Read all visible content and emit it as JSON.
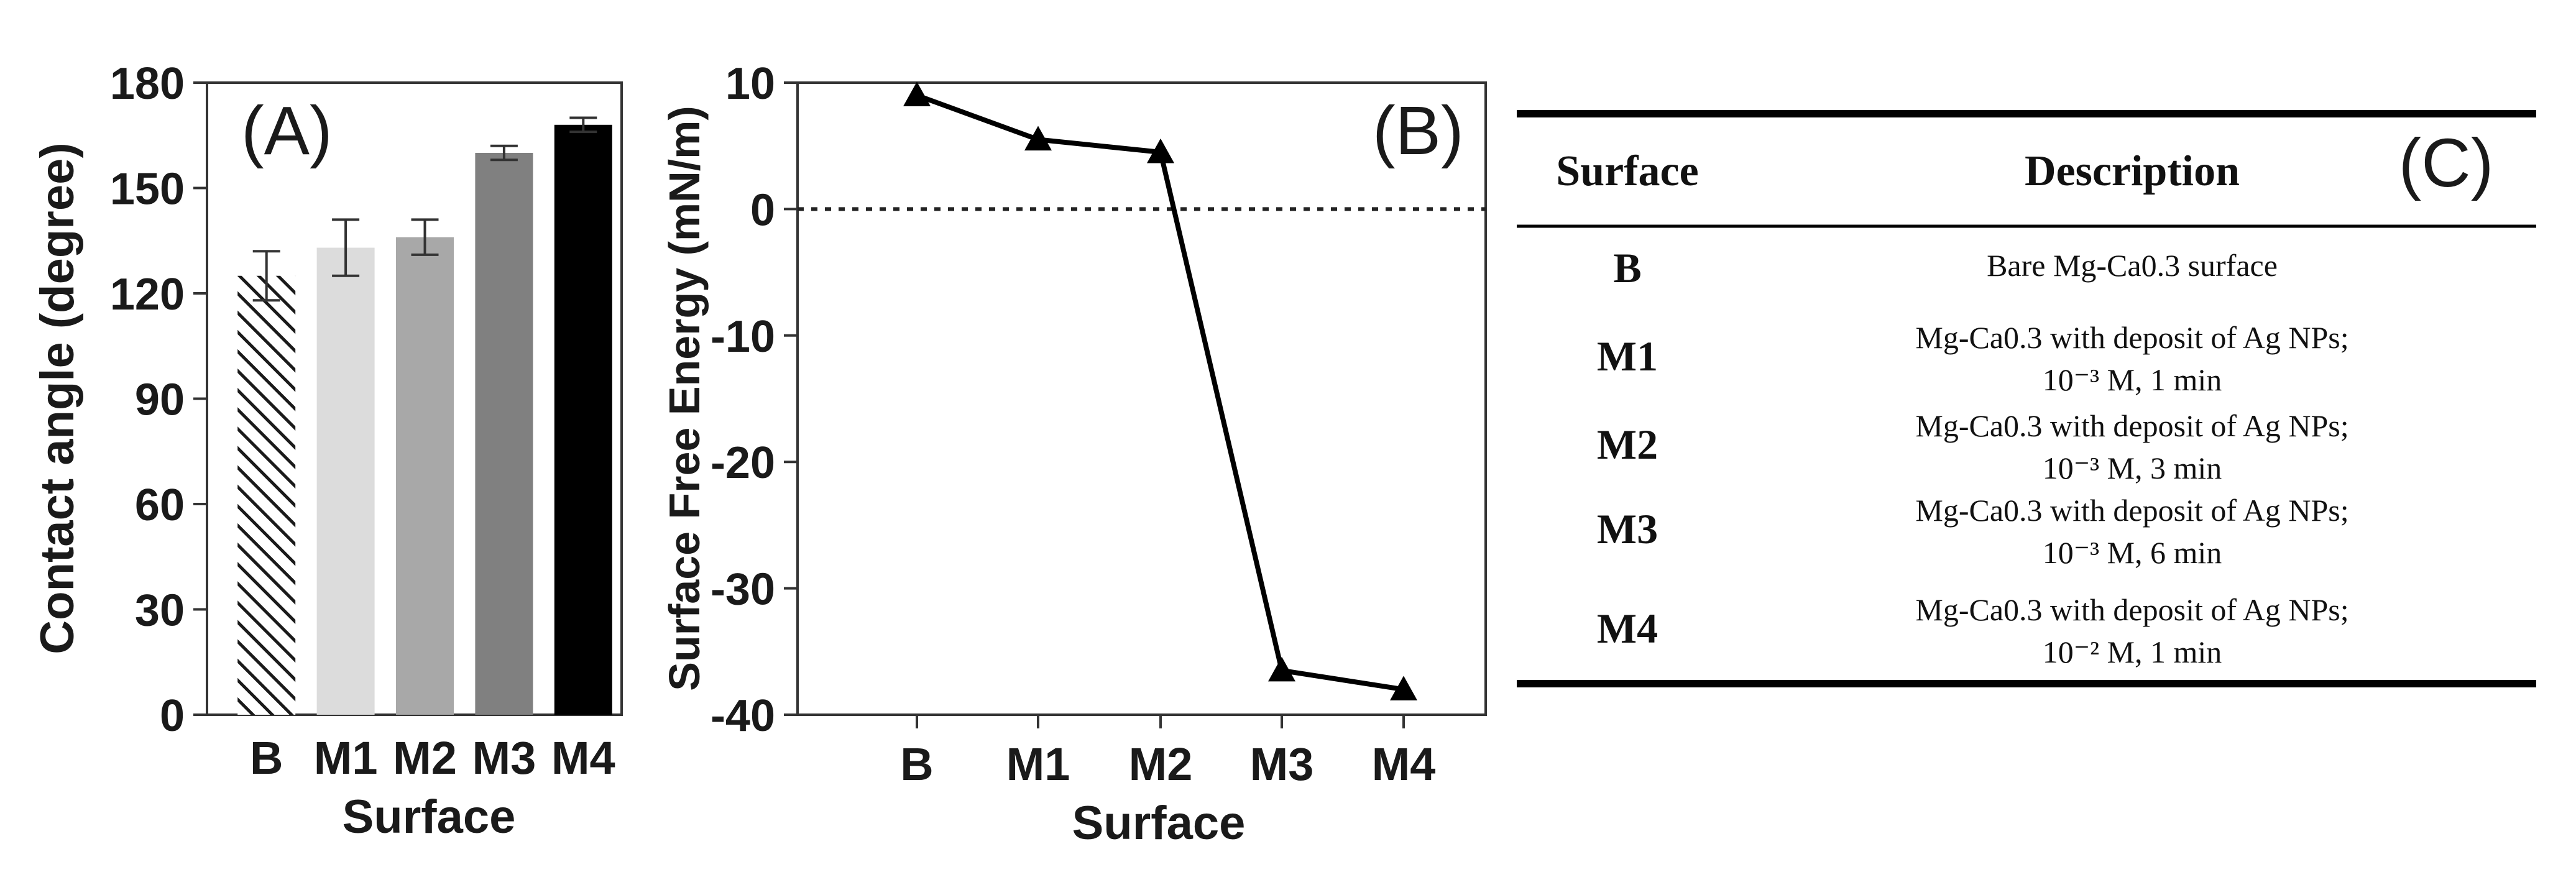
{
  "panels": {
    "a_label": "(A)",
    "b_label": "(B)",
    "c_label": "(C)"
  },
  "chart_data": [
    {
      "type": "bar",
      "title": "(A)",
      "xlabel": "Surface",
      "ylabel": "Contact angle (degree)",
      "categories": [
        "B",
        "M1",
        "M2",
        "M3",
        "M4"
      ],
      "values": [
        125,
        133,
        136,
        160,
        168
      ],
      "errors": [
        7,
        8,
        5,
        2,
        2
      ],
      "colors": [
        "hatched",
        "#dcdcdc",
        "#a8a8a8",
        "#808080",
        "#000000"
      ],
      "ylim": [
        0,
        180
      ],
      "yticks": [
        0,
        30,
        60,
        90,
        120,
        150,
        180
      ]
    },
    {
      "type": "line",
      "title": "(B)",
      "xlabel": "Surface",
      "ylabel": "Surface Free Energy (mN/m)",
      "categories": [
        "B",
        "M1",
        "M2",
        "M3",
        "M4"
      ],
      "values": [
        9,
        5.5,
        4.5,
        -36.5,
        -38
      ],
      "marker": "triangle",
      "reference_line": 0,
      "ylim": [
        -40,
        10
      ],
      "yticks": [
        -40,
        -30,
        -20,
        -10,
        0,
        10
      ]
    },
    {
      "type": "table",
      "title": "(C)",
      "columns": [
        "Surface",
        "Description"
      ],
      "rows": [
        {
          "surface": "B",
          "line1": "Bare Mg-Ca0.3 surface",
          "line2": ""
        },
        {
          "surface": "M1",
          "line1": "Mg-Ca0.3 with deposit of Ag NPs;",
          "line2": "10⁻³ M, 1 min"
        },
        {
          "surface": "M2",
          "line1": "Mg-Ca0.3 with deposit of Ag NPs;",
          "line2": "10⁻³ M, 3 min"
        },
        {
          "surface": "M3",
          "line1": "Mg-Ca0.3 with deposit of Ag NPs;",
          "line2": "10⁻³ M, 6 min"
        },
        {
          "surface": "M4",
          "line1": "Mg-Ca0.3 with deposit of Ag NPs;",
          "line2": "10⁻² M, 1 min"
        }
      ]
    }
  ]
}
